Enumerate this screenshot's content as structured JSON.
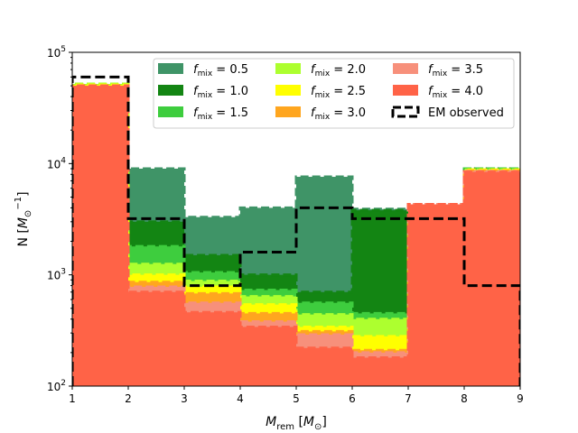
{
  "chart_data": {
    "type": "bar",
    "yscale": "log",
    "xlabel": "M_rem [M_⊙]",
    "ylabel": "N [M_⊙^-1]",
    "xlim": [
      1,
      9
    ],
    "ylim": [
      100,
      100000
    ],
    "x_ticks": [
      "1",
      "2",
      "3",
      "4",
      "5",
      "6",
      "7",
      "8",
      "9"
    ],
    "y_ticks": [
      {
        "value": 100,
        "mantissa": "10",
        "exponent": "2"
      },
      {
        "value": 1000,
        "mantissa": "10",
        "exponent": "3"
      },
      {
        "value": 10000,
        "mantissa": "10",
        "exponent": "4"
      },
      {
        "value": 100000,
        "mantissa": "10",
        "exponent": "5"
      }
    ],
    "bin_edges": [
      1,
      2,
      3,
      4,
      5,
      6,
      7,
      8,
      9
    ],
    "series": [
      {
        "name": "f_mix = 0.5",
        "label_main": "f",
        "label_sub": "mix",
        "label_rest": " = 0.5",
        "color": "#3f9467",
        "edge": "#3f9467",
        "values": [
          52000,
          9000,
          3300,
          4000,
          7600,
          3900,
          2700,
          9000
        ]
      },
      {
        "name": "f_mix = 1.0",
        "label_main": "f",
        "label_sub": "mix",
        "label_rest": " = 1.0",
        "color": "#138513",
        "edge": "#138513",
        "values": [
          52000,
          3000,
          1500,
          1000,
          700,
          3800,
          1900,
          9000
        ]
      },
      {
        "name": "f_mix = 1.5",
        "label_main": "f",
        "label_sub": "mix",
        "label_rest": " = 1.5",
        "color": "#3ecd3e",
        "edge": "#3ecd3e",
        "values": [
          52000,
          1800,
          1050,
          730,
          560,
          450,
          3300,
          9000
        ]
      },
      {
        "name": "f_mix = 2.0",
        "label_main": "f",
        "label_sub": "mix",
        "label_rest": " = 2.0",
        "color": "#adff2f",
        "edge": "#adff2f",
        "values": [
          52000,
          1250,
          880,
          640,
          440,
          400,
          3400,
          8800
        ]
      },
      {
        "name": "f_mix = 2.5",
        "label_main": "f",
        "label_sub": "mix",
        "label_rest": " = 2.5",
        "color": "#ffff00",
        "edge": "#ffff00",
        "values": [
          51000,
          1000,
          780,
          540,
          340,
          280,
          3400,
          8800
        ]
      },
      {
        "name": "f_mix = 3.0",
        "label_main": "f",
        "label_sub": "mix",
        "label_rest": " = 3.0",
        "color": "#ffa61f",
        "edge": "#ffa61f",
        "values": [
          50000,
          860,
          680,
          450,
          310,
          210,
          3300,
          8600
        ]
      },
      {
        "name": "f_mix = 3.5",
        "label_main": "f",
        "label_sub": "mix",
        "label_rest": " = 3.5",
        "color": "#f7907b",
        "edge": "#f7907b",
        "values": [
          50000,
          780,
          560,
          380,
          290,
          200,
          4300,
          8500
        ]
      },
      {
        "name": "f_mix = 4.0",
        "label_main": "f",
        "label_sub": "mix",
        "label_rest": " = 4.0",
        "color": "#ff6347",
        "edge": "#ff6347",
        "values": [
          50000,
          700,
          460,
          340,
          220,
          180,
          4300,
          8400
        ]
      }
    ],
    "observed": {
      "name": "EM observed",
      "color": "#000000",
      "values": [
        60000,
        3200,
        800,
        1600,
        4000,
        3200,
        3200,
        800
      ]
    },
    "legend": {
      "placement": "top-right",
      "columns": 3,
      "observed_label": "EM observed"
    }
  }
}
